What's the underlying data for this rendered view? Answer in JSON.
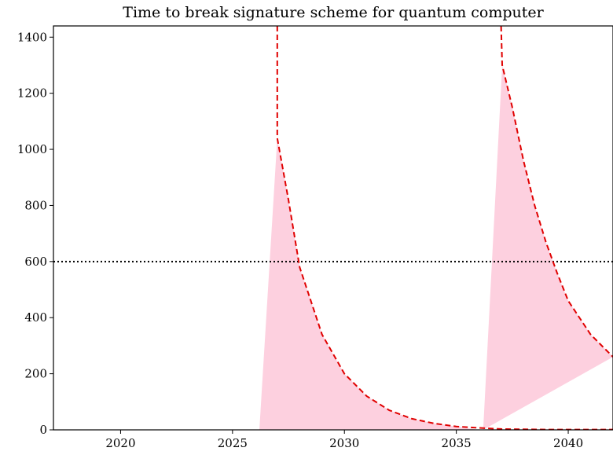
{
  "chart_data": {
    "type": "line",
    "title": "Time to break signature scheme for quantum computer",
    "xlabel": "",
    "ylabel": "",
    "xlim": [
      2017.0,
      2042.0
    ],
    "ylim": [
      0,
      1440
    ],
    "x_ticks": [
      2020,
      2025,
      2030,
      2035,
      2040
    ],
    "y_ticks": [
      0,
      200,
      400,
      600,
      800,
      1000,
      1200,
      1400
    ],
    "x_tick_labels": [
      "2020",
      "2025",
      "2030",
      "2035",
      "2040"
    ],
    "y_tick_labels": [
      "0",
      "200",
      "400",
      "600",
      "800",
      "1000",
      "1200",
      "1400"
    ],
    "grid": false,
    "series": [
      {
        "style": "dashed",
        "color": "#e00000",
        "x": [
          2027.0,
          2027.0,
          2027.5,
          2028.0,
          2028.5,
          2029.0,
          2030.0,
          2031.0,
          2032.0,
          2033.0,
          2034.0,
          2035.0,
          2036.0,
          2037.0,
          2038.0,
          2039.0,
          2040.0,
          2041.0,
          2042.0
        ],
        "y": [
          1440,
          1040,
          820,
          580,
          460,
          340,
          200,
          120,
          70,
          40,
          23,
          12,
          7,
          3,
          2,
          1,
          1,
          1,
          1
        ]
      },
      {
        "style": "dashed",
        "color": "#e00000",
        "x": [
          2037.0,
          2037.05,
          2037.5,
          2038.0,
          2038.5,
          2039.0,
          2039.5,
          2040.0,
          2041.0,
          2042.0
        ],
        "y": [
          1440,
          1300,
          1150,
          960,
          800,
          670,
          560,
          460,
          340,
          260
        ]
      }
    ],
    "reference_lines": [
      {
        "orientation": "horizontal",
        "y": 600,
        "style": "dotted",
        "color": "#000000"
      }
    ],
    "shaded_regions": [
      {
        "color": "#fdd0df",
        "x": [
          2026.2,
          2027.0,
          2027.5,
          2028.0,
          2028.5,
          2029.0,
          2030.0,
          2031.0,
          2032.0,
          2033.0,
          2034.0,
          2035.0,
          2036.0
        ],
        "y": [
          0,
          1040,
          820,
          580,
          460,
          340,
          200,
          120,
          70,
          40,
          23,
          12,
          0
        ]
      },
      {
        "color": "#fdd0df",
        "x": [
          2036.2,
          2037.05,
          2037.5,
          2038.0,
          2038.5,
          2039.0,
          2039.5,
          2040.0,
          2041.0,
          2042.0
        ],
        "y": [
          0,
          1300,
          1150,
          960,
          800,
          670,
          560,
          460,
          340,
          260
        ]
      }
    ]
  }
}
